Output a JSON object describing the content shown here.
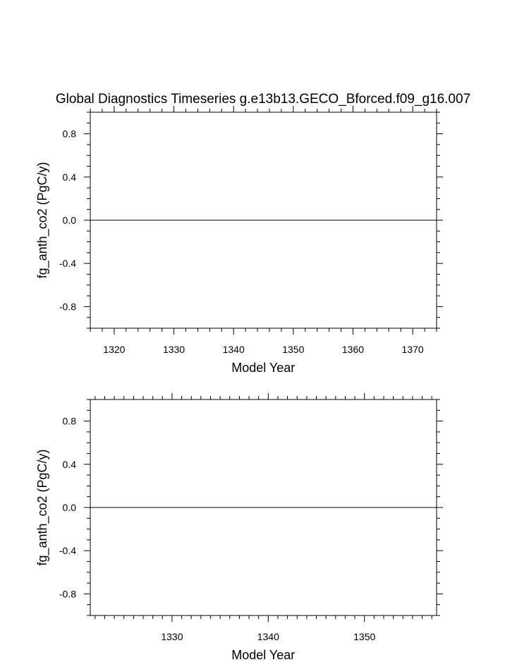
{
  "title": "Global Diagnostics Timeseries g.e13b13.GECO_Bforced.f09_g16.007",
  "chart_data": [
    {
      "type": "line",
      "xlabel": "Model Year",
      "ylabel": "fg_anth_co2 (PgC/y)",
      "xlim": [
        1316,
        1374
      ],
      "ylim": [
        -1.0,
        1.0
      ],
      "xticks": [
        1320,
        1330,
        1340,
        1350,
        1360,
        1370
      ],
      "x_minor_step": 2,
      "yticks": [
        0.8,
        0.4,
        0.0,
        -0.4,
        -0.8
      ],
      "y_tick_labels": [
        "0.8",
        "0.4",
        "0.0",
        "-0.4",
        "-0.8"
      ],
      "y_minor_step": 0.1,
      "series": [
        {
          "x": [
            1316,
            1374
          ],
          "y": [
            0.0,
            0.0
          ],
          "color": "#000000"
        }
      ]
    },
    {
      "type": "line",
      "xlabel": "Model Year",
      "ylabel": "fg_anth_co2 (PgC/y)",
      "xlim": [
        1321.5,
        1357.5
      ],
      "ylim": [
        -1.0,
        1.0
      ],
      "xticks": [
        1330,
        1340,
        1350
      ],
      "x_minor_step": 1,
      "yticks": [
        0.8,
        0.4,
        0.0,
        -0.4,
        -0.8
      ],
      "y_tick_labels": [
        "0.8",
        "0.4",
        "0.0",
        "-0.4",
        "-0.8"
      ],
      "y_minor_step": 0.1,
      "series": [
        {
          "x": [
            1321.5,
            1357.5
          ],
          "y": [
            0.0,
            0.0
          ],
          "color": "#000000"
        }
      ]
    }
  ]
}
